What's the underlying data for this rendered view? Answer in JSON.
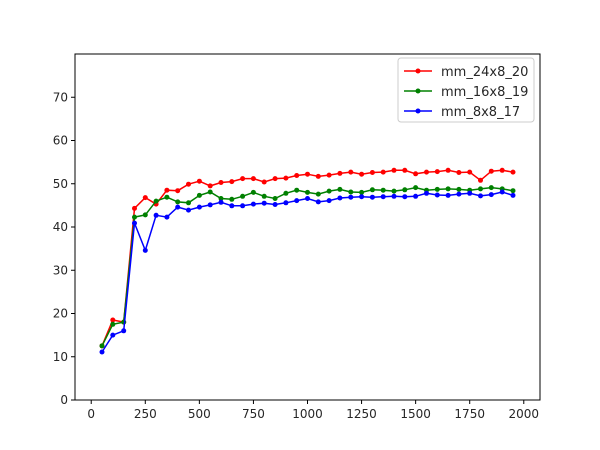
{
  "chart_data": {
    "type": "line",
    "title": "",
    "xlabel": "",
    "ylabel": "",
    "xlim": [
      -75,
      2075
    ],
    "ylim": [
      0,
      80
    ],
    "grid": false,
    "legend_position": "upper right",
    "x_ticks": [
      0,
      250,
      500,
      750,
      1000,
      1250,
      1500,
      1750,
      2000
    ],
    "y_ticks": [
      0,
      10,
      20,
      30,
      40,
      50,
      60,
      70
    ],
    "x": [
      50,
      100,
      150,
      200,
      250,
      300,
      350,
      400,
      450,
      500,
      550,
      600,
      650,
      700,
      750,
      800,
      850,
      900,
      950,
      1000,
      1050,
      1100,
      1150,
      1200,
      1250,
      1300,
      1350,
      1400,
      1450,
      1500,
      1550,
      1600,
      1650,
      1700,
      1750,
      1800,
      1850,
      1900,
      1950
    ],
    "series": [
      {
        "name": "mm_24x8_20",
        "color": "#ff0000",
        "values": [
          12.5,
          18.5,
          18.0,
          44.3,
          46.8,
          45.3,
          48.5,
          48.4,
          49.9,
          50.6,
          49.5,
          50.3,
          50.5,
          51.2,
          51.2,
          50.4,
          51.2,
          51.3,
          51.9,
          52.2,
          51.7,
          52.0,
          52.4,
          52.7,
          52.2,
          52.6,
          52.7,
          53.1,
          53.1,
          52.3,
          52.7,
          52.8,
          53.1,
          52.6,
          52.7,
          50.8,
          52.9,
          53.1,
          52.7
        ]
      },
      {
        "name": "mm_16x8_19",
        "color": "#008000",
        "values": [
          12.5,
          17.5,
          18.0,
          42.3,
          42.8,
          46.0,
          46.9,
          45.8,
          45.6,
          47.3,
          48.1,
          46.6,
          46.4,
          47.1,
          48.0,
          47.1,
          46.6,
          47.8,
          48.5,
          48.0,
          47.6,
          48.3,
          48.7,
          48.1,
          48.0,
          48.6,
          48.5,
          48.3,
          48.6,
          49.1,
          48.5,
          48.7,
          48.8,
          48.7,
          48.5,
          48.8,
          49.1,
          48.8,
          48.4
        ]
      },
      {
        "name": "mm_8x8_17",
        "color": "#0000ff",
        "values": [
          11.1,
          15.0,
          16.0,
          40.9,
          34.6,
          42.7,
          42.3,
          44.6,
          43.9,
          44.6,
          45.1,
          45.7,
          44.9,
          44.9,
          45.3,
          45.5,
          45.2,
          45.6,
          46.1,
          46.6,
          45.8,
          46.1,
          46.7,
          46.9,
          47.0,
          46.9,
          47.0,
          47.1,
          47.0,
          47.1,
          47.8,
          47.4,
          47.3,
          47.6,
          47.8,
          47.2,
          47.5,
          48.1,
          47.3
        ]
      }
    ]
  }
}
